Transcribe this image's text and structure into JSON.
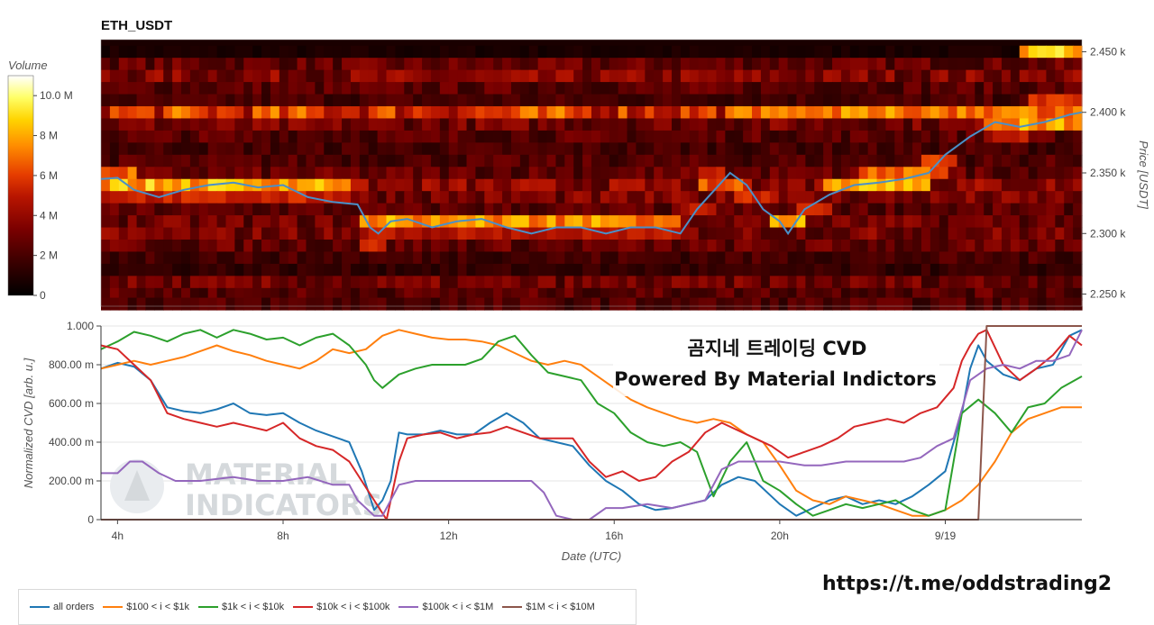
{
  "chart_data": [
    {
      "type": "heatmap",
      "title": "ETH_USDT",
      "ylabel": "Price [USDT]",
      "ylim": [
        2240,
        2460
      ],
      "yticks": [
        "2.450 k",
        "2.400 k",
        "2.350 k",
        "2.300 k",
        "2.250 k"
      ],
      "ytick_values": [
        2450,
        2400,
        2350,
        2300,
        2250
      ],
      "colorbar": {
        "label": "Volume",
        "ticks": [
          "10.0 M",
          "8 M",
          "6 M",
          "4 M",
          "2 M",
          "0"
        ],
        "tick_values": [
          10,
          8,
          6,
          4,
          2,
          0
        ],
        "range": [
          0,
          11
        ]
      },
      "colorscale": [
        "#000000",
        "#3a0000",
        "#7a0000",
        "#b81500",
        "#e63d00",
        "#ff8c00",
        "#ffd400",
        "#ffff66",
        "#ffffff"
      ],
      "price_line_color": "#4a90c8",
      "x_range_hours": [
        3.6,
        27.3
      ],
      "price_series": {
        "x": [
          3.6,
          4.0,
          4.4,
          5.0,
          5.6,
          6.2,
          6.8,
          7.4,
          8.0,
          8.6,
          9.2,
          9.8,
          10.1,
          10.3,
          10.6,
          11.0,
          11.6,
          12.2,
          12.8,
          13.4,
          14.0,
          14.6,
          15.2,
          15.8,
          16.4,
          17.0,
          17.6,
          18.0,
          18.4,
          18.8,
          19.2,
          19.6,
          20.0,
          20.2,
          20.6,
          21.2,
          21.8,
          22.4,
          23.0,
          23.6,
          24.0,
          24.6,
          25.2,
          25.8,
          26.4,
          27.0,
          27.3
        ],
        "y": [
          2345,
          2346,
          2336,
          2330,
          2336,
          2340,
          2342,
          2338,
          2340,
          2330,
          2326,
          2324,
          2305,
          2300,
          2310,
          2312,
          2305,
          2310,
          2312,
          2305,
          2300,
          2305,
          2305,
          2300,
          2305,
          2305,
          2300,
          2320,
          2335,
          2350,
          2340,
          2320,
          2310,
          2300,
          2320,
          2332,
          2340,
          2342,
          2345,
          2350,
          2365,
          2380,
          2392,
          2388,
          2392,
          2398,
          2400
        ]
      },
      "level_rows": [
        {
          "price": 2450,
          "base": 0.6,
          "hot": [
            [
              18.6,
              18.7,
              8
            ],
            [
              25.8,
              27.3,
              8
            ]
          ]
        },
        {
          "price": 2440,
          "base": 2.2,
          "hot": []
        },
        {
          "price": 2430,
          "base": 2.8,
          "hot": []
        },
        {
          "price": 2420,
          "base": 2.0,
          "hot": []
        },
        {
          "price": 2410,
          "base": 1.6,
          "hot": [
            [
              26.0,
              27.3,
              5
            ]
          ]
        },
        {
          "price": 2400,
          "base": 5.0,
          "hot": [
            [
              18.8,
              27.3,
              6.5
            ]
          ]
        },
        {
          "price": 2390,
          "base": 2.5,
          "hot": [
            [
              25.0,
              27.3,
              7
            ]
          ]
        },
        {
          "price": 2380,
          "base": 2.0,
          "hot": [
            [
              25.0,
              26.0,
              4
            ]
          ]
        },
        {
          "price": 2370,
          "base": 1.6,
          "hot": []
        },
        {
          "price": 2360,
          "base": 1.8,
          "hot": [
            [
              23.4,
              24.2,
              5
            ]
          ]
        },
        {
          "price": 2350,
          "base": 2.2,
          "hot": [
            [
              3.6,
              4.4,
              6
            ],
            [
              18.0,
              18.6,
              5
            ],
            [
              22.0,
              24.0,
              6
            ]
          ]
        },
        {
          "price": 2340,
          "base": 3.0,
          "hot": [
            [
              3.6,
              9.6,
              7.5
            ],
            [
              18.0,
              19.4,
              5.5
            ],
            [
              21.0,
              23.6,
              8
            ]
          ]
        },
        {
          "price": 2330,
          "base": 2.6,
          "hot": [
            [
              3.6,
              9.6,
              4.5
            ],
            [
              19.0,
              20.0,
              5
            ]
          ]
        },
        {
          "price": 2320,
          "base": 2.0,
          "hot": [
            [
              17.6,
              18.4,
              4
            ],
            [
              20.4,
              21.2,
              5
            ]
          ]
        },
        {
          "price": 2310,
          "base": 2.4,
          "hot": [
            [
              9.8,
              17.6,
              7
            ],
            [
              19.8,
              20.6,
              7
            ]
          ]
        },
        {
          "price": 2300,
          "base": 2.6,
          "hot": [
            [
              9.8,
              17.6,
              4
            ]
          ]
        },
        {
          "price": 2290,
          "base": 2.2,
          "hot": [
            [
              9.8,
              10.4,
              5
            ]
          ]
        },
        {
          "price": 2280,
          "base": 1.6,
          "hot": []
        },
        {
          "price": 2270,
          "base": 1.2,
          "hot": []
        },
        {
          "price": 2260,
          "base": 2.4,
          "hot": []
        },
        {
          "price": 2250,
          "base": 2.0,
          "hot": []
        },
        {
          "price": 2242,
          "base": 1.8,
          "hot": []
        }
      ]
    },
    {
      "type": "line",
      "xlabel": "Date (UTC)",
      "ylabel": "Normalized CVD [arb. u.]",
      "ylim": [
        0,
        1
      ],
      "yticks": [
        "1.000",
        "800.00 m",
        "600.00 m",
        "400.00 m",
        "200.00 m",
        "0"
      ],
      "ytick_values": [
        1.0,
        0.8,
        0.6,
        0.4,
        0.2,
        0
      ],
      "xlim": [
        3.6,
        27.3
      ],
      "xticks": [
        "4h",
        "8h",
        "12h",
        "16h",
        "20h",
        "9/19"
      ],
      "xtick_values": [
        4,
        8,
        12,
        16,
        20,
        24
      ],
      "series": [
        {
          "name": "all orders",
          "color": "#1f77b4",
          "x": [
            3.6,
            4.0,
            4.4,
            4.8,
            5.2,
            5.6,
            6.0,
            6.4,
            6.8,
            7.2,
            7.6,
            8.0,
            8.4,
            8.8,
            9.2,
            9.6,
            9.9,
            10.2,
            10.4,
            10.6,
            10.8,
            11.0,
            11.4,
            11.8,
            12.2,
            12.6,
            13.0,
            13.4,
            13.8,
            14.2,
            14.6,
            15.0,
            15.4,
            15.8,
            16.2,
            16.6,
            17.0,
            17.4,
            17.8,
            18.2,
            18.6,
            19.0,
            19.4,
            19.8,
            20.0,
            20.4,
            20.8,
            21.2,
            21.6,
            22.0,
            22.4,
            22.8,
            23.2,
            23.6,
            24.0,
            24.4,
            24.6,
            24.8,
            25.0,
            25.4,
            25.8,
            26.2,
            26.6,
            27.0,
            27.3
          ],
          "y": [
            0.78,
            0.81,
            0.79,
            0.72,
            0.58,
            0.56,
            0.55,
            0.57,
            0.6,
            0.55,
            0.54,
            0.55,
            0.5,
            0.46,
            0.43,
            0.4,
            0.25,
            0.05,
            0.1,
            0.2,
            0.45,
            0.44,
            0.44,
            0.46,
            0.44,
            0.44,
            0.5,
            0.55,
            0.5,
            0.42,
            0.4,
            0.38,
            0.28,
            0.2,
            0.15,
            0.08,
            0.05,
            0.06,
            0.08,
            0.1,
            0.18,
            0.22,
            0.2,
            0.12,
            0.08,
            0.02,
            0.06,
            0.1,
            0.12,
            0.08,
            0.1,
            0.08,
            0.12,
            0.18,
            0.25,
            0.55,
            0.78,
            0.9,
            0.82,
            0.75,
            0.72,
            0.78,
            0.8,
            0.95,
            0.98
          ]
        },
        {
          "name": "$100 < i < $1k",
          "color": "#ff7f0e",
          "x": [
            3.6,
            4.0,
            4.4,
            4.8,
            5.2,
            5.6,
            6.0,
            6.4,
            6.8,
            7.2,
            7.6,
            8.0,
            8.4,
            8.8,
            9.2,
            9.6,
            10.0,
            10.4,
            10.8,
            11.2,
            11.6,
            12.0,
            12.4,
            12.8,
            13.2,
            13.6,
            14.0,
            14.4,
            14.8,
            15.2,
            15.6,
            16.0,
            16.4,
            16.8,
            17.2,
            17.6,
            18.0,
            18.4,
            18.8,
            19.2,
            19.6,
            20.0,
            20.4,
            20.8,
            21.2,
            21.6,
            22.0,
            22.4,
            22.8,
            23.2,
            23.6,
            24.0,
            24.4,
            24.8,
            25.2,
            25.6,
            26.0,
            26.4,
            26.8,
            27.3
          ],
          "y": [
            0.78,
            0.8,
            0.82,
            0.8,
            0.82,
            0.84,
            0.87,
            0.9,
            0.87,
            0.85,
            0.82,
            0.8,
            0.78,
            0.82,
            0.88,
            0.86,
            0.88,
            0.95,
            0.98,
            0.96,
            0.94,
            0.93,
            0.93,
            0.92,
            0.9,
            0.86,
            0.82,
            0.8,
            0.82,
            0.8,
            0.74,
            0.68,
            0.62,
            0.58,
            0.55,
            0.52,
            0.5,
            0.52,
            0.5,
            0.44,
            0.4,
            0.28,
            0.15,
            0.1,
            0.08,
            0.12,
            0.1,
            0.08,
            0.05,
            0.02,
            0.02,
            0.05,
            0.1,
            0.18,
            0.3,
            0.45,
            0.52,
            0.55,
            0.58,
            0.58
          ]
        },
        {
          "name": "$1k < i < $10k",
          "color": "#2ca02c",
          "x": [
            3.6,
            4.0,
            4.4,
            4.8,
            5.2,
            5.6,
            6.0,
            6.4,
            6.8,
            7.2,
            7.6,
            8.0,
            8.4,
            8.8,
            9.2,
            9.6,
            10.0,
            10.2,
            10.4,
            10.8,
            11.2,
            11.6,
            12.0,
            12.4,
            12.8,
            13.2,
            13.6,
            14.0,
            14.4,
            14.8,
            15.2,
            15.6,
            16.0,
            16.4,
            16.8,
            17.2,
            17.6,
            18.0,
            18.4,
            18.8,
            19.2,
            19.6,
            20.0,
            20.4,
            20.8,
            21.2,
            21.6,
            22.0,
            22.4,
            22.8,
            23.2,
            23.6,
            24.0,
            24.4,
            24.8,
            25.2,
            25.6,
            26.0,
            26.4,
            26.8,
            27.3
          ],
          "y": [
            0.88,
            0.92,
            0.97,
            0.95,
            0.92,
            0.96,
            0.98,
            0.94,
            0.98,
            0.96,
            0.93,
            0.94,
            0.9,
            0.94,
            0.96,
            0.9,
            0.8,
            0.72,
            0.68,
            0.75,
            0.78,
            0.8,
            0.8,
            0.8,
            0.83,
            0.92,
            0.95,
            0.85,
            0.76,
            0.74,
            0.72,
            0.6,
            0.55,
            0.45,
            0.4,
            0.38,
            0.4,
            0.35,
            0.12,
            0.3,
            0.4,
            0.2,
            0.15,
            0.08,
            0.02,
            0.05,
            0.08,
            0.06,
            0.08,
            0.1,
            0.05,
            0.02,
            0.05,
            0.55,
            0.62,
            0.55,
            0.45,
            0.58,
            0.6,
            0.68,
            0.74
          ]
        },
        {
          "name": "$10k < i < $100k",
          "color": "#d62728",
          "x": [
            3.6,
            4.0,
            4.4,
            4.8,
            5.2,
            5.6,
            6.0,
            6.4,
            6.8,
            7.2,
            7.6,
            8.0,
            8.4,
            8.8,
            9.2,
            9.6,
            9.9,
            10.2,
            10.5,
            10.8,
            11.0,
            11.4,
            11.8,
            12.2,
            12.6,
            13.0,
            13.4,
            13.8,
            14.2,
            14.6,
            15.0,
            15.4,
            15.8,
            16.2,
            16.6,
            17.0,
            17.4,
            17.8,
            18.2,
            18.6,
            19.0,
            19.4,
            19.8,
            20.2,
            20.6,
            21.0,
            21.4,
            21.8,
            22.2,
            22.6,
            23.0,
            23.4,
            23.8,
            24.2,
            24.4,
            24.6,
            24.8,
            25.0,
            25.4,
            25.8,
            26.2,
            26.6,
            27.0,
            27.3
          ],
          "y": [
            0.9,
            0.88,
            0.8,
            0.72,
            0.55,
            0.52,
            0.5,
            0.48,
            0.5,
            0.48,
            0.46,
            0.5,
            0.42,
            0.38,
            0.36,
            0.3,
            0.2,
            0.1,
            0.0,
            0.3,
            0.42,
            0.44,
            0.45,
            0.42,
            0.44,
            0.45,
            0.48,
            0.45,
            0.42,
            0.42,
            0.42,
            0.3,
            0.22,
            0.25,
            0.2,
            0.22,
            0.3,
            0.35,
            0.45,
            0.5,
            0.46,
            0.42,
            0.38,
            0.32,
            0.35,
            0.38,
            0.42,
            0.48,
            0.5,
            0.52,
            0.5,
            0.55,
            0.58,
            0.68,
            0.82,
            0.9,
            0.96,
            0.98,
            0.8,
            0.72,
            0.78,
            0.85,
            0.95,
            0.9
          ]
        },
        {
          "name": "$100k < i < $1M",
          "color": "#9467bd",
          "x": [
            3.6,
            4.0,
            4.3,
            4.6,
            5.0,
            5.4,
            6.0,
            6.8,
            7.4,
            8.0,
            8.6,
            9.2,
            9.6,
            9.8,
            10.2,
            10.4,
            10.8,
            11.2,
            12.0,
            12.6,
            13.4,
            14.0,
            14.3,
            14.6,
            15.0,
            15.4,
            15.8,
            16.2,
            16.8,
            17.4,
            17.8,
            18.2,
            18.6,
            19.0,
            19.4,
            20.0,
            20.6,
            21.0,
            21.6,
            22.0,
            22.6,
            23.0,
            23.4,
            23.8,
            24.2,
            24.6,
            25.0,
            25.4,
            25.8,
            26.2,
            26.6,
            27.0,
            27.3
          ],
          "y": [
            0.24,
            0.24,
            0.3,
            0.3,
            0.24,
            0.2,
            0.2,
            0.22,
            0.2,
            0.2,
            0.22,
            0.18,
            0.18,
            0.1,
            0.02,
            0.02,
            0.18,
            0.2,
            0.2,
            0.2,
            0.2,
            0.2,
            0.14,
            0.02,
            0.0,
            0.0,
            0.06,
            0.06,
            0.08,
            0.06,
            0.08,
            0.1,
            0.26,
            0.3,
            0.3,
            0.3,
            0.28,
            0.28,
            0.3,
            0.3,
            0.3,
            0.3,
            0.32,
            0.38,
            0.42,
            0.72,
            0.78,
            0.8,
            0.78,
            0.82,
            0.82,
            0.85,
            0.98
          ]
        },
        {
          "name": "$1M < i < $10M",
          "color": "#8c564b",
          "x": [
            3.6,
            24.6,
            24.8,
            25.0,
            27.3
          ],
          "y": [
            0.0,
            0.0,
            0.0,
            1.0,
            1.0
          ]
        }
      ],
      "legend_position": "bottom-left"
    }
  ],
  "overlay": {
    "title_kr": "곰지네 트레이딩 CVD",
    "powered_by": "Powered By Material Indictors",
    "watermark_line1": "MATERIAL",
    "watermark_line2": "INDICATORS",
    "link": "https://t.me/oddstrading2"
  }
}
